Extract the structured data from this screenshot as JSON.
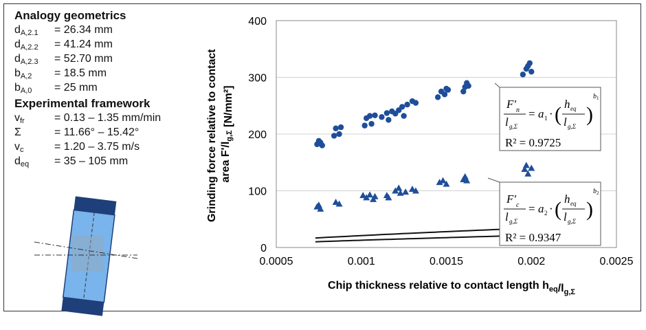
{
  "geometry": {
    "title": "Analogy geometrics",
    "rows": [
      {
        "sym": "d",
        "sub": "A,2.1",
        "value": "= 26.34 mm"
      },
      {
        "sym": "d",
        "sub": "A,2.2",
        "value": "= 41.24 mm"
      },
      {
        "sym": "d",
        "sub": "A,2.3",
        "value": "= 52.70 mm"
      },
      {
        "sym": "b",
        "sub": "A,2",
        "value": "= 18.5 mm"
      },
      {
        "sym": "b",
        "sub": "A,0",
        "value": "= 25 mm"
      }
    ]
  },
  "framework": {
    "title": "Experimental framework",
    "rows": [
      {
        "sym": "v",
        "sub": "fr",
        "value": "= 0.13 – 1.35 mm/min"
      },
      {
        "sym": "Σ",
        "sub": "",
        "value": "= 11.66° – 15.42°"
      },
      {
        "sym": "v",
        "sub": "c",
        "value": "= 1.20 – 3.75 m/s"
      },
      {
        "sym": "d",
        "sub": "eq",
        "value": "= 35 – 105 mm"
      }
    ]
  },
  "colors": {
    "marker": "#1f4e99",
    "tool": "#79b4ec",
    "tool_dark": "#1f3f7a"
  },
  "chart_data": {
    "type": "scatter",
    "xlabel": "Chip thickness relative to contact length h",
    "xlabel_sub": "eq",
    "xlabel_sep": "/l",
    "xlabel_sub2": "g,Σ",
    "ylabel_line1": "Grinding force relative to contact",
    "ylabel_line2": "area F'/l",
    "ylabel_sub": "g,Σ",
    "ylabel_unit": " [N/mm²]",
    "xlim": [
      0.0005,
      0.0025
    ],
    "ylim": [
      0,
      400
    ],
    "xticks": [
      "0.0005",
      "0.001",
      "0.0015",
      "0.002",
      "0.0025"
    ],
    "yticks": [
      "0",
      "100",
      "200",
      "300",
      "400"
    ],
    "grid": "horizontal",
    "series": [
      {
        "marker": "circle",
        "points": [
          [
            0.00074,
            182
          ],
          [
            0.00075,
            188
          ],
          [
            0.00076,
            185
          ],
          [
            0.00077,
            180
          ],
          [
            0.00084,
            197
          ],
          [
            0.00085,
            210
          ],
          [
            0.00087,
            200
          ],
          [
            0.00088,
            212
          ],
          [
            0.00102,
            215
          ],
          [
            0.00103,
            228
          ],
          [
            0.00105,
            232
          ],
          [
            0.00106,
            218
          ],
          [
            0.00108,
            233
          ],
          [
            0.00112,
            230
          ],
          [
            0.00115,
            237
          ],
          [
            0.00116,
            225
          ],
          [
            0.00118,
            240
          ],
          [
            0.0012,
            236
          ],
          [
            0.00122,
            242
          ],
          [
            0.00124,
            248
          ],
          [
            0.00125,
            232
          ],
          [
            0.00127,
            252
          ],
          [
            0.0013,
            258
          ],
          [
            0.00132,
            255
          ],
          [
            0.00145,
            265
          ],
          [
            0.00147,
            275
          ],
          [
            0.00149,
            270
          ],
          [
            0.0015,
            280
          ],
          [
            0.00151,
            278
          ],
          [
            0.0016,
            275
          ],
          [
            0.00161,
            283
          ],
          [
            0.00162,
            290
          ],
          [
            0.00163,
            285
          ],
          [
            0.00195,
            305
          ],
          [
            0.00197,
            315
          ],
          [
            0.00198,
            320
          ],
          [
            0.00199,
            325
          ],
          [
            0.002,
            310
          ]
        ],
        "fit": {
          "a": 2810,
          "b": 0.709
        },
        "r2_label": "R² = 0.9725"
      },
      {
        "marker": "triangle",
        "points": [
          [
            0.00074,
            72
          ],
          [
            0.00075,
            75
          ],
          [
            0.00076,
            68
          ],
          [
            0.00085,
            80
          ],
          [
            0.00087,
            77
          ],
          [
            0.00101,
            92
          ],
          [
            0.00103,
            88
          ],
          [
            0.00105,
            93
          ],
          [
            0.00107,
            85
          ],
          [
            0.00108,
            90
          ],
          [
            0.00115,
            92
          ],
          [
            0.00116,
            88
          ],
          [
            0.0012,
            100
          ],
          [
            0.00122,
            105
          ],
          [
            0.00123,
            96
          ],
          [
            0.00126,
            98
          ],
          [
            0.0013,
            103
          ],
          [
            0.00132,
            100
          ],
          [
            0.00146,
            115
          ],
          [
            0.00148,
            118
          ],
          [
            0.0015,
            112
          ],
          [
            0.0016,
            120
          ],
          [
            0.00161,
            125
          ],
          [
            0.00162,
            118
          ],
          [
            0.00196,
            138
          ],
          [
            0.00197,
            145
          ],
          [
            0.00198,
            130
          ],
          [
            0.002,
            140
          ]
        ],
        "fit": {
          "a": 2355,
          "b": 0.755
        },
        "r2_label": "R² = 0.9347"
      }
    ],
    "annotations": [
      {
        "lhs_num": "F",
        "lhs_num_sub": "n",
        "coef": "a",
        "coef_sub": "1",
        "exp": "b",
        "exp_sub": "1",
        "r2": "R² = 0.9725"
      },
      {
        "lhs_num": "F",
        "lhs_num_sub": "c",
        "coef": "a",
        "coef_sub": "2",
        "exp": "b",
        "exp_sub": "2",
        "r2": "R² = 0.9347"
      }
    ],
    "formula_parts": {
      "den": "l",
      "den_sub": "g,Σ",
      "h": "h",
      "h_sub": "eq",
      "eq": "=",
      "dot": "·",
      "prime": "′"
    }
  }
}
